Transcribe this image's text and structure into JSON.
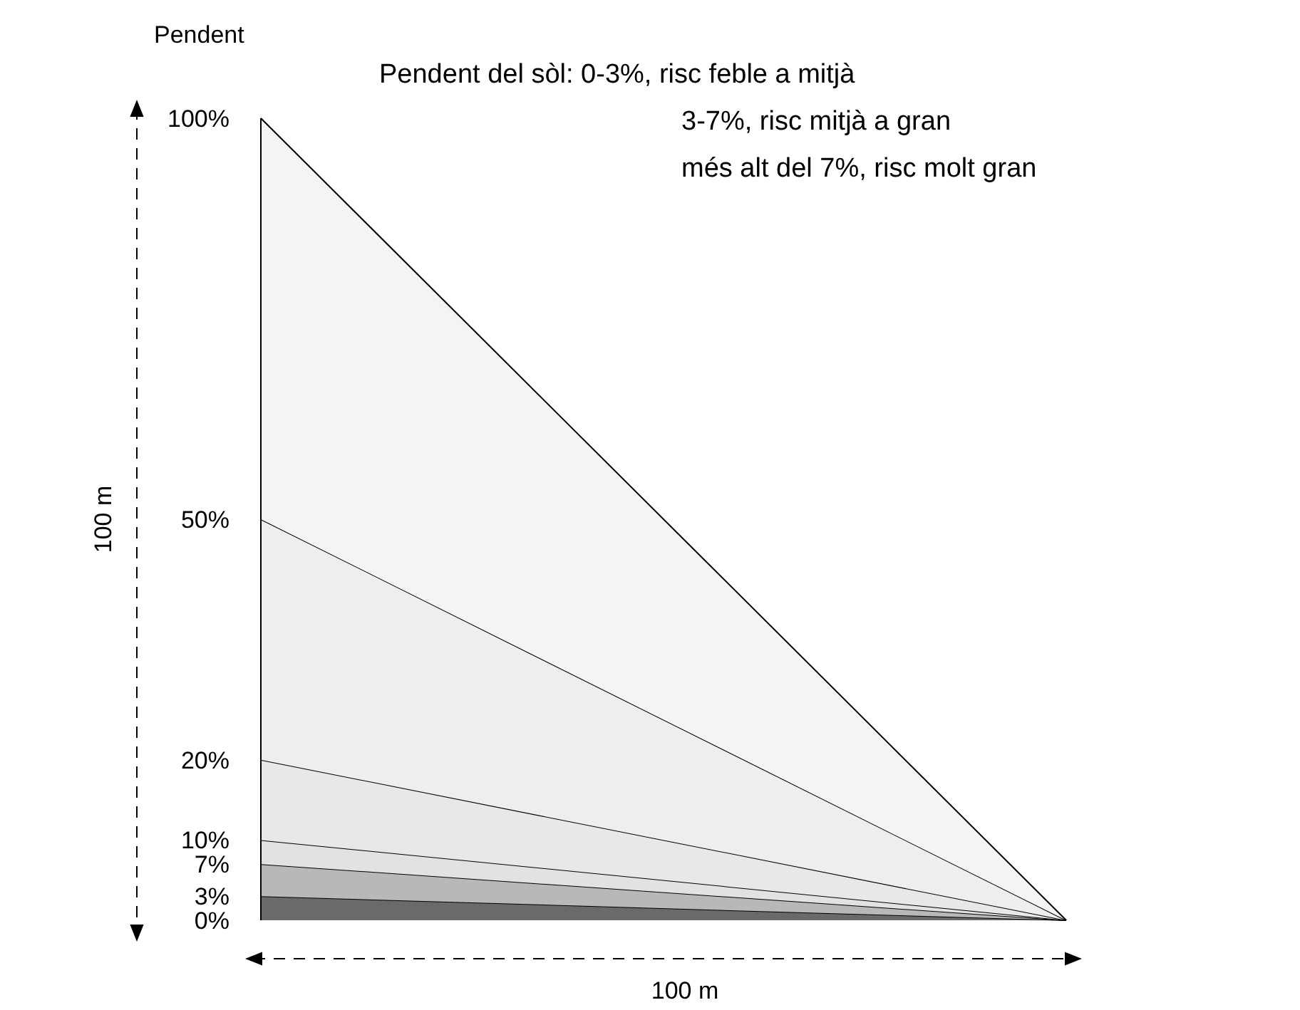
{
  "chart_data": {
    "type": "area",
    "stacked": true,
    "ylabel": "Pendent",
    "xlabel": "100 m",
    "y2label": "100 m",
    "categories": [
      null,
      null
    ],
    "ylim": [
      0,
      100
    ],
    "yticks": [
      {
        "value": 0,
        "label": "0%"
      },
      {
        "value": 3,
        "label": "3%"
      },
      {
        "value": 7,
        "label": "7%"
      },
      {
        "value": 10,
        "label": "10%"
      },
      {
        "value": 20,
        "label": "20%"
      },
      {
        "value": 50,
        "label": "50%"
      },
      {
        "value": 100,
        "label": "100%"
      }
    ],
    "tick_labels": "y",
    "grid": false,
    "marker": "none",
    "line_style": "solid",
    "series": [
      {
        "color": "#6a6a6a",
        "values": [
          3,
          0
        ]
      },
      {
        "color": "#b8b8b8",
        "values": [
          4,
          0
        ]
      },
      {
        "color": "#e2e2e2",
        "values": [
          3,
          0
        ]
      },
      {
        "color": "#e8e8e8",
        "values": [
          10,
          0
        ]
      },
      {
        "color": "#eeeeee",
        "values": [
          30,
          0
        ]
      },
      {
        "color": "#f4f4f4",
        "values": [
          50,
          0
        ]
      }
    ],
    "annotations": [
      "Pendent del sòl: 0-3%, risc feble a mitjà",
      "3-7%, risc mitjà a gran",
      "més alt del 7%, risc molt gran"
    ]
  }
}
